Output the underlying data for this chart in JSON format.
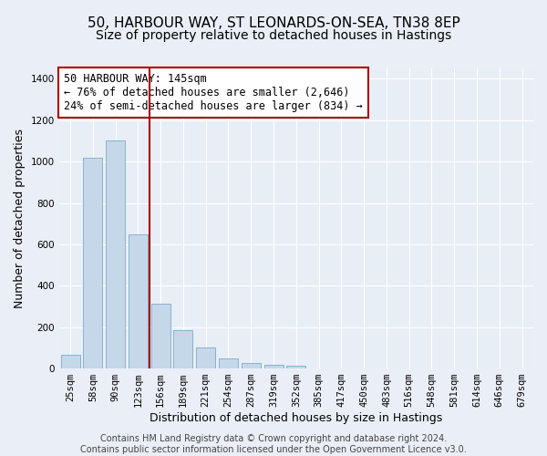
{
  "title_line1": "50, HARBOUR WAY, ST LEONARDS-ON-SEA, TN38 8EP",
  "title_line2": "Size of property relative to detached houses in Hastings",
  "xlabel": "Distribution of detached houses by size in Hastings",
  "ylabel": "Number of detached properties",
  "categories": [
    "25sqm",
    "58sqm",
    "90sqm",
    "123sqm",
    "156sqm",
    "189sqm",
    "221sqm",
    "254sqm",
    "287sqm",
    "319sqm",
    "352sqm",
    "385sqm",
    "417sqm",
    "450sqm",
    "483sqm",
    "516sqm",
    "548sqm",
    "581sqm",
    "614sqm",
    "646sqm",
    "679sqm"
  ],
  "values": [
    65,
    1020,
    1100,
    650,
    315,
    185,
    100,
    50,
    25,
    20,
    15,
    0,
    0,
    0,
    0,
    0,
    0,
    0,
    0,
    0,
    0
  ],
  "bar_color": "#c5d8ea",
  "bar_edge_color": "#7aaac8",
  "vline_x": 3.5,
  "vline_color": "#aa0000",
  "annotation_text": "50 HARBOUR WAY: 145sqm\n← 76% of detached houses are smaller (2,646)\n24% of semi-detached houses are larger (834) →",
  "annotation_box_color": "#ffffff",
  "annotation_box_edgecolor": "#aa0000",
  "ylim": [
    0,
    1450
  ],
  "yticks": [
    0,
    200,
    400,
    600,
    800,
    1000,
    1200,
    1400
  ],
  "background_color": "#eaeff7",
  "plot_bg_color": "#e8eef6",
  "grid_color": "#ffffff",
  "footer_text": "Contains HM Land Registry data © Crown copyright and database right 2024.\nContains public sector information licensed under the Open Government Licence v3.0.",
  "title_fontsize": 11,
  "subtitle_fontsize": 10,
  "axis_label_fontsize": 9,
  "tick_fontsize": 7.5,
  "annotation_fontsize": 8.5,
  "footer_fontsize": 7
}
